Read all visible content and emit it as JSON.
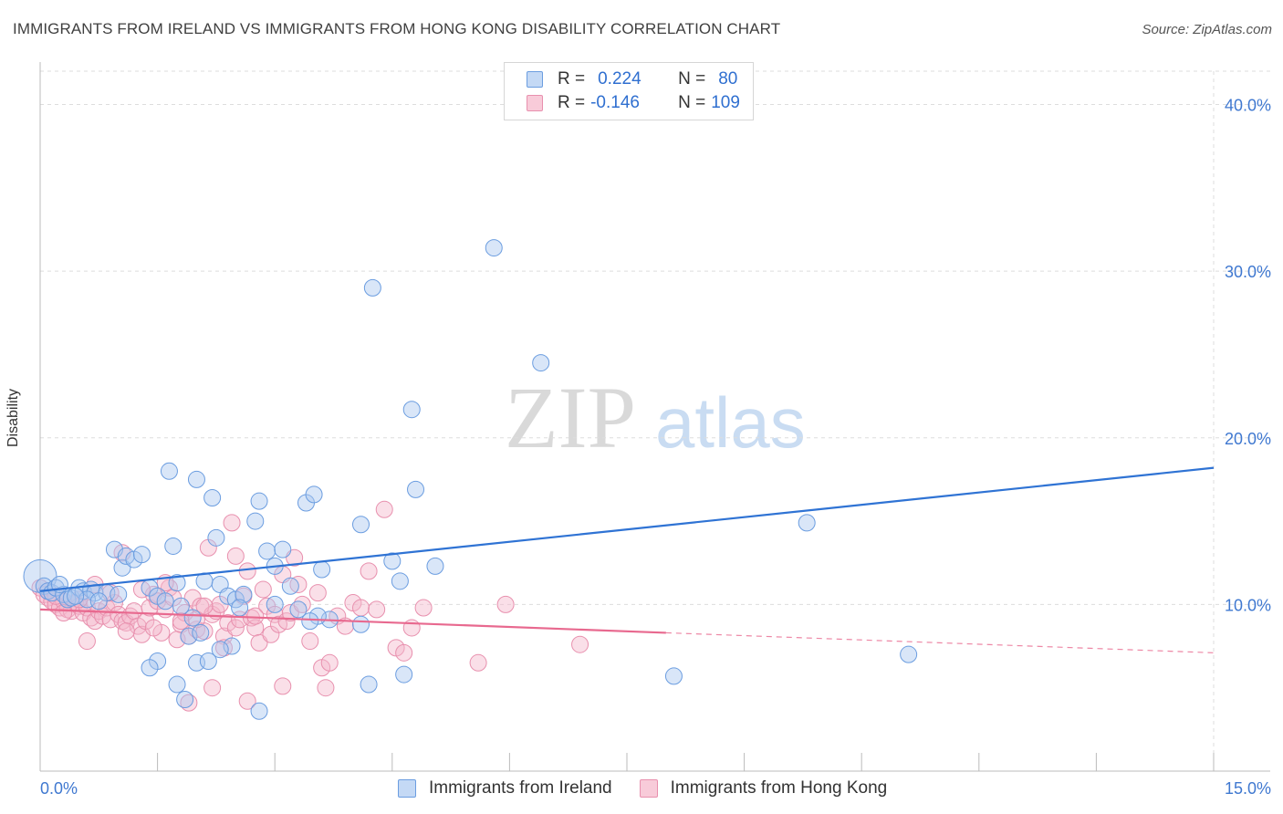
{
  "title": "IMMIGRANTS FROM IRELAND VS IMMIGRANTS FROM HONG KONG DISABILITY CORRELATION CHART",
  "source": "Source: ZipAtlas.com",
  "watermark": {
    "zip": "ZIP",
    "atlas": "atlas"
  },
  "colors": {
    "ireland_fill": "#aac8f0",
    "ireland_stroke": "#6b9de0",
    "ireland_line": "#2f73d4",
    "hk_fill": "#f4b8cc",
    "hk_stroke": "#e890ae",
    "hk_line": "#e8698f",
    "tick_label": "#3f78d0",
    "grid": "#dddddd"
  },
  "legend_top": {
    "rows": [
      {
        "r_label": "R =",
        "r_value": "0.224",
        "n_label": "N =",
        "n_value": "80"
      },
      {
        "r_label": "R =",
        "r_value": "-0.146",
        "n_label": "N =",
        "n_value": "109"
      }
    ]
  },
  "legend_bottom": [
    "Immigrants from Ireland",
    "Immigrants from Hong Kong"
  ],
  "chart_data": {
    "type": "scatter",
    "title": "IMMIGRANTS FROM IRELAND VS IMMIGRANTS FROM HONG KONG DISABILITY CORRELATION CHART",
    "xlabel": "",
    "ylabel": "Disability",
    "xlim": [
      0,
      15
    ],
    "ylim": [
      0,
      42
    ],
    "x_tick_labels": [
      "0.0%",
      "15.0%"
    ],
    "y_ticks": [
      10,
      20,
      30,
      40
    ],
    "y_tick_labels": [
      "10.0%",
      "20.0%",
      "30.0%",
      "40.0%"
    ],
    "grid": true,
    "legend_position": "top-center",
    "series": [
      {
        "name": "Immigrants from Ireland",
        "r": 0.224,
        "n": 80,
        "trend": {
          "x": [
            0,
            15
          ],
          "y": [
            10.8,
            18.2
          ]
        },
        "points": [
          [
            0.0,
            11.7
          ],
          [
            0.05,
            11.1
          ],
          [
            0.1,
            10.8
          ],
          [
            0.15,
            10.7
          ],
          [
            0.2,
            11.0
          ],
          [
            0.3,
            10.6
          ],
          [
            0.35,
            10.3
          ],
          [
            0.4,
            10.4
          ],
          [
            0.5,
            11.0
          ],
          [
            0.55,
            10.8
          ],
          [
            0.65,
            10.9
          ],
          [
            0.7,
            10.7
          ],
          [
            0.85,
            10.7
          ],
          [
            0.95,
            13.3
          ],
          [
            1.05,
            12.2
          ],
          [
            1.1,
            12.9
          ],
          [
            1.2,
            12.7
          ],
          [
            1.3,
            13.0
          ],
          [
            1.4,
            11.0
          ],
          [
            1.5,
            10.5
          ],
          [
            1.6,
            10.2
          ],
          [
            1.65,
            18.0
          ],
          [
            1.7,
            13.5
          ],
          [
            1.75,
            11.3
          ],
          [
            1.8,
            9.9
          ],
          [
            1.9,
            8.1
          ],
          [
            1.95,
            9.2
          ],
          [
            2.0,
            17.5
          ],
          [
            2.1,
            11.4
          ],
          [
            2.2,
            16.4
          ],
          [
            2.25,
            14.0
          ],
          [
            2.3,
            11.2
          ],
          [
            2.4,
            10.5
          ],
          [
            2.5,
            10.3
          ],
          [
            2.6,
            10.6
          ],
          [
            2.75,
            15.0
          ],
          [
            2.8,
            16.2
          ],
          [
            2.9,
            13.2
          ],
          [
            3.0,
            12.3
          ],
          [
            3.1,
            13.3
          ],
          [
            3.2,
            11.1
          ],
          [
            3.3,
            9.7
          ],
          [
            3.4,
            16.1
          ],
          [
            3.5,
            16.6
          ],
          [
            3.6,
            12.1
          ],
          [
            3.7,
            9.1
          ],
          [
            4.1,
            14.8
          ],
          [
            4.25,
            29.0
          ],
          [
            4.5,
            12.6
          ],
          [
            4.6,
            11.4
          ],
          [
            4.75,
            21.7
          ],
          [
            4.8,
            16.9
          ],
          [
            5.05,
            12.3
          ],
          [
            5.8,
            31.4
          ],
          [
            6.4,
            24.5
          ],
          [
            9.8,
            14.9
          ],
          [
            11.1,
            7.0
          ],
          [
            8.1,
            5.7
          ],
          [
            1.5,
            6.6
          ],
          [
            1.75,
            5.2
          ],
          [
            2.0,
            6.5
          ],
          [
            2.15,
            6.6
          ],
          [
            2.45,
            7.5
          ],
          [
            2.8,
            3.6
          ],
          [
            3.0,
            10.0
          ],
          [
            4.2,
            5.2
          ],
          [
            4.65,
            5.8
          ],
          [
            1.4,
            6.2
          ],
          [
            0.25,
            11.2
          ],
          [
            0.6,
            10.3
          ],
          [
            0.45,
            10.5
          ],
          [
            0.75,
            10.2
          ],
          [
            1.0,
            10.6
          ],
          [
            2.3,
            7.3
          ],
          [
            2.55,
            9.8
          ],
          [
            3.55,
            9.3
          ],
          [
            4.1,
            8.8
          ],
          [
            1.85,
            4.3
          ],
          [
            2.05,
            8.3
          ],
          [
            3.45,
            9.0
          ]
        ]
      },
      {
        "name": "Immigrants from Hong Kong",
        "r": -0.146,
        "n": 109,
        "trend": {
          "x": [
            0,
            8.0
          ],
          "y": [
            9.7,
            8.3
          ]
        },
        "trend_dashed": {
          "x": [
            8.0,
            15
          ],
          "y": [
            8.3,
            7.1
          ]
        },
        "points": [
          [
            0.0,
            11.0
          ],
          [
            0.05,
            10.6
          ],
          [
            0.1,
            10.4
          ],
          [
            0.15,
            10.2
          ],
          [
            0.2,
            10.0
          ],
          [
            0.25,
            9.8
          ],
          [
            0.3,
            10.2
          ],
          [
            0.35,
            9.7
          ],
          [
            0.4,
            9.6
          ],
          [
            0.45,
            10.1
          ],
          [
            0.5,
            9.9
          ],
          [
            0.55,
            9.5
          ],
          [
            0.6,
            9.8
          ],
          [
            0.65,
            9.2
          ],
          [
            0.7,
            9.0
          ],
          [
            0.75,
            9.6
          ],
          [
            0.8,
            9.3
          ],
          [
            0.85,
            9.8
          ],
          [
            0.9,
            9.1
          ],
          [
            0.95,
            10.1
          ],
          [
            1.0,
            9.4
          ],
          [
            1.05,
            9.0
          ],
          [
            1.1,
            8.9
          ],
          [
            1.15,
            9.3
          ],
          [
            1.2,
            9.6
          ],
          [
            1.25,
            8.7
          ],
          [
            1.3,
            8.2
          ],
          [
            1.35,
            9.0
          ],
          [
            1.4,
            9.8
          ],
          [
            1.45,
            10.6
          ],
          [
            1.5,
            10.2
          ],
          [
            1.55,
            8.3
          ],
          [
            1.6,
            9.7
          ],
          [
            1.65,
            11.0
          ],
          [
            1.7,
            10.4
          ],
          [
            1.75,
            7.9
          ],
          [
            1.8,
            8.8
          ],
          [
            1.85,
            9.5
          ],
          [
            1.9,
            8.1
          ],
          [
            1.95,
            10.4
          ],
          [
            2.0,
            8.5
          ],
          [
            2.05,
            9.9
          ],
          [
            2.1,
            8.4
          ],
          [
            2.15,
            13.4
          ],
          [
            2.2,
            9.4
          ],
          [
            2.25,
            9.6
          ],
          [
            2.3,
            10.0
          ],
          [
            2.35,
            8.1
          ],
          [
            2.4,
            8.9
          ],
          [
            2.45,
            14.9
          ],
          [
            2.5,
            8.6
          ],
          [
            2.55,
            9.1
          ],
          [
            2.6,
            10.5
          ],
          [
            2.65,
            12.0
          ],
          [
            2.7,
            9.2
          ],
          [
            2.75,
            8.6
          ],
          [
            2.8,
            7.7
          ],
          [
            2.85,
            10.9
          ],
          [
            2.9,
            9.9
          ],
          [
            2.95,
            8.2
          ],
          [
            3.0,
            9.4
          ],
          [
            3.05,
            8.8
          ],
          [
            3.1,
            11.8
          ],
          [
            3.15,
            9.0
          ],
          [
            3.2,
            9.5
          ],
          [
            3.3,
            11.2
          ],
          [
            3.35,
            10.0
          ],
          [
            3.45,
            7.8
          ],
          [
            3.55,
            10.7
          ],
          [
            3.6,
            6.2
          ],
          [
            3.7,
            6.5
          ],
          [
            3.8,
            9.3
          ],
          [
            3.9,
            8.7
          ],
          [
            4.0,
            10.1
          ],
          [
            4.1,
            9.8
          ],
          [
            4.2,
            12.0
          ],
          [
            4.3,
            9.7
          ],
          [
            4.4,
            15.7
          ],
          [
            4.55,
            7.4
          ],
          [
            4.65,
            7.1
          ],
          [
            4.75,
            8.6
          ],
          [
            4.9,
            9.8
          ],
          [
            5.6,
            6.5
          ],
          [
            5.95,
            10.0
          ],
          [
            6.9,
            7.6
          ],
          [
            0.6,
            7.8
          ],
          [
            1.05,
            13.1
          ],
          [
            1.9,
            4.1
          ],
          [
            2.2,
            5.0
          ],
          [
            2.65,
            4.2
          ],
          [
            3.1,
            5.1
          ],
          [
            3.65,
            5.0
          ],
          [
            0.1,
            10.8
          ],
          [
            0.2,
            10.5
          ],
          [
            0.3,
            9.5
          ],
          [
            0.5,
            10.3
          ],
          [
            0.7,
            11.2
          ],
          [
            0.9,
            10.7
          ],
          [
            1.1,
            8.4
          ],
          [
            1.3,
            10.9
          ],
          [
            1.45,
            8.6
          ],
          [
            1.6,
            11.3
          ],
          [
            1.8,
            9.0
          ],
          [
            2.0,
            9.1
          ],
          [
            2.1,
            9.9
          ],
          [
            2.35,
            7.4
          ],
          [
            2.5,
            12.9
          ],
          [
            2.75,
            9.3
          ],
          [
            3.25,
            12.8
          ]
        ]
      }
    ]
  }
}
